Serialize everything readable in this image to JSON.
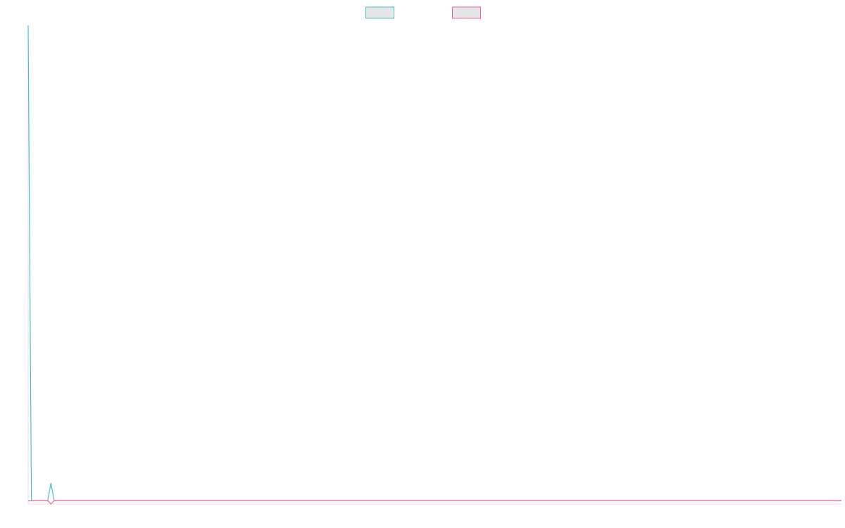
{
  "chart_data": {
    "type": "line",
    "x": [
      0,
      1,
      6,
      7,
      8,
      250
    ],
    "xlim": [
      0,
      250
    ],
    "ylim": [
      0,
      100
    ],
    "grid": false,
    "series": [
      {
        "color": "#4bc0c0",
        "values": [
          100,
          0.7,
          0.7,
          4.4,
          0.7,
          0.7
        ]
      },
      {
        "color": "#ff6384",
        "values": [
          0.7,
          0.7,
          0.7,
          0,
          0.7,
          0.7
        ]
      }
    ]
  }
}
